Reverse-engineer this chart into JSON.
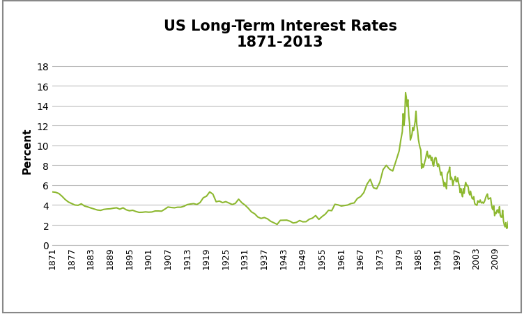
{
  "title": "US Long-Term Interest Rates\n1871-2013",
  "ylabel": "Percent",
  "line_color": "#8DB830",
  "line_width": 1.5,
  "background_color": "#ffffff",
  "ylim": [
    0,
    19
  ],
  "yticks": [
    0,
    2,
    4,
    6,
    8,
    10,
    12,
    14,
    16,
    18
  ],
  "xtick_years": [
    1871,
    1877,
    1883,
    1889,
    1895,
    1901,
    1907,
    1913,
    1919,
    1925,
    1931,
    1937,
    1943,
    1949,
    1955,
    1961,
    1967,
    1973,
    1979,
    1985,
    1991,
    1997,
    2003,
    2009
  ],
  "data": {
    "1871": 5.32,
    "1872": 5.28,
    "1873": 5.16,
    "1874": 4.88,
    "1875": 4.55,
    "1876": 4.3,
    "1877": 4.15,
    "1878": 4.0,
    "1879": 3.97,
    "1880": 4.12,
    "1881": 3.9,
    "1882": 3.81,
    "1883": 3.7,
    "1884": 3.6,
    "1885": 3.5,
    "1886": 3.46,
    "1887": 3.56,
    "1888": 3.6,
    "1889": 3.62,
    "1890": 3.68,
    "1891": 3.72,
    "1892": 3.58,
    "1893": 3.72,
    "1894": 3.52,
    "1895": 3.42,
    "1896": 3.47,
    "1897": 3.35,
    "1898": 3.26,
    "1899": 3.27,
    "1900": 3.31,
    "1901": 3.28,
    "1902": 3.3,
    "1903": 3.4,
    "1904": 3.4,
    "1905": 3.38,
    "1906": 3.58,
    "1907": 3.8,
    "1908": 3.75,
    "1909": 3.72,
    "1910": 3.78,
    "1911": 3.78,
    "1912": 3.88,
    "1913": 4.04,
    "1914": 4.1,
    "1915": 4.14,
    "1916": 4.05,
    "1917": 4.25,
    "1918": 4.73,
    "1919": 4.89,
    "1920": 5.32,
    "1921": 5.09,
    "1922": 4.33,
    "1923": 4.4,
    "1924": 4.24,
    "1925": 4.34,
    "1926": 4.2,
    "1927": 4.05,
    "1928": 4.17,
    "1929": 4.59,
    "1930": 4.23,
    "1931": 3.99,
    "1932": 3.68,
    "1933": 3.31,
    "1934": 3.12,
    "1935": 2.79,
    "1936": 2.65,
    "1937": 2.74,
    "1938": 2.61,
    "1939": 2.36,
    "1940": 2.21,
    "1941": 2.05,
    "1942": 2.46,
    "1943": 2.47,
    "1944": 2.48,
    "1945": 2.37,
    "1946": 2.19,
    "1947": 2.25,
    "1948": 2.44,
    "1949": 2.31,
    "1950": 2.32,
    "1951": 2.57,
    "1952": 2.68,
    "1953": 2.94,
    "1954": 2.55,
    "1955": 2.84,
    "1956": 3.08,
    "1957": 3.47,
    "1958": 3.43,
    "1959": 4.07,
    "1960": 4.01,
    "1961": 3.9,
    "1962": 3.95,
    "1963": 4.0,
    "1964": 4.15,
    "1965": 4.21,
    "1966": 4.66,
    "1967": 4.85,
    "1968": 5.25,
    "1969": 6.1,
    "1970": 6.59,
    "1971": 5.74,
    "1972": 5.63,
    "1973": 6.3,
    "1974": 7.56,
    "1975": 7.99,
    "1976": 7.61,
    "1977": 7.42,
    "1978": 8.41,
    "1979": 9.44,
    "1979.5": 10.5,
    "1980": 11.39,
    "1980.25": 13.2,
    "1980.5": 12.0,
    "1980.75": 12.8,
    "1981": 15.32,
    "1981.25": 14.8,
    "1981.5": 13.9,
    "1981.75": 14.59,
    "1982": 13.0,
    "1982.25": 12.2,
    "1982.5": 10.54,
    "1982.75": 10.8,
    "1983": 11.1,
    "1983.25": 11.8,
    "1983.5": 11.5,
    "1983.75": 11.9,
    "1984": 12.44,
    "1984.25": 13.44,
    "1984.5": 12.1,
    "1984.75": 11.5,
    "1985": 10.62,
    "1985.25": 10.16,
    "1985.5": 9.78,
    "1985.75": 9.55,
    "1986": 7.68,
    "1986.25": 8.14,
    "1986.5": 7.8,
    "1986.75": 8.0,
    "1987": 8.38,
    "1987.25": 8.65,
    "1987.5": 9.1,
    "1987.75": 9.4,
    "1988": 8.85,
    "1988.25": 8.72,
    "1988.5": 9.0,
    "1988.75": 8.95,
    "1989": 8.49,
    "1989.25": 8.8,
    "1989.5": 8.1,
    "1989.75": 7.9,
    "1990": 8.55,
    "1990.25": 8.78,
    "1990.5": 8.74,
    "1990.75": 8.27,
    "1991": 7.86,
    "1991.25": 8.14,
    "1991.5": 7.9,
    "1991.75": 7.42,
    "1992": 7.01,
    "1992.25": 7.3,
    "1992.5": 6.72,
    "1992.75": 6.35,
    "1993": 5.87,
    "1993.25": 6.28,
    "1993.5": 5.94,
    "1993.75": 5.63,
    "1994": 7.08,
    "1994.25": 7.3,
    "1994.5": 7.4,
    "1994.75": 7.81,
    "1995": 6.57,
    "1995.25": 6.8,
    "1995.5": 6.58,
    "1995.75": 5.98,
    "1996": 6.44,
    "1996.25": 6.54,
    "1996.5": 6.87,
    "1996.75": 6.35,
    "1997": 6.35,
    "1997.25": 6.74,
    "1997.5": 6.22,
    "1997.75": 5.92,
    "1998": 5.26,
    "1998.25": 5.65,
    "1998.5": 5.15,
    "1998.75": 4.83,
    "1999": 5.64,
    "1999.25": 5.18,
    "1999.5": 5.92,
    "1999.75": 6.28,
    "2000": 5.94,
    "2000.25": 6.01,
    "2000.5": 5.83,
    "2000.75": 5.24,
    "2001": 5.02,
    "2001.25": 5.39,
    "2001.5": 4.96,
    "2001.75": 4.65,
    "2002": 4.61,
    "2002.25": 4.84,
    "2002.5": 4.22,
    "2002.75": 4.04,
    "2003": 4.01,
    "2003.25": 3.97,
    "2003.5": 4.42,
    "2003.75": 4.29,
    "2004": 4.27,
    "2004.25": 4.51,
    "2004.5": 4.28,
    "2004.75": 4.2,
    "2005": 4.29,
    "2005.25": 4.18,
    "2005.5": 4.3,
    "2005.75": 4.5,
    "2006": 4.79,
    "2006.25": 4.96,
    "2006.5": 5.11,
    "2006.75": 4.6,
    "2007": 4.63,
    "2007.25": 4.68,
    "2007.5": 4.72,
    "2007.75": 4.1,
    "2008": 3.66,
    "2008.25": 3.52,
    "2008.5": 3.91,
    "2008.75": 2.93,
    "2009": 3.26,
    "2009.25": 3.15,
    "2009.5": 3.49,
    "2009.75": 3.51,
    "2010": 3.22,
    "2010.25": 3.84,
    "2010.5": 2.97,
    "2010.75": 2.79,
    "2011": 2.78,
    "2011.25": 3.46,
    "2011.5": 2.4,
    "2011.75": 2.02,
    "2012": 1.8,
    "2012.25": 2.23,
    "2012.5": 1.65,
    "2012.75": 1.72,
    "2013": 2.35
  }
}
